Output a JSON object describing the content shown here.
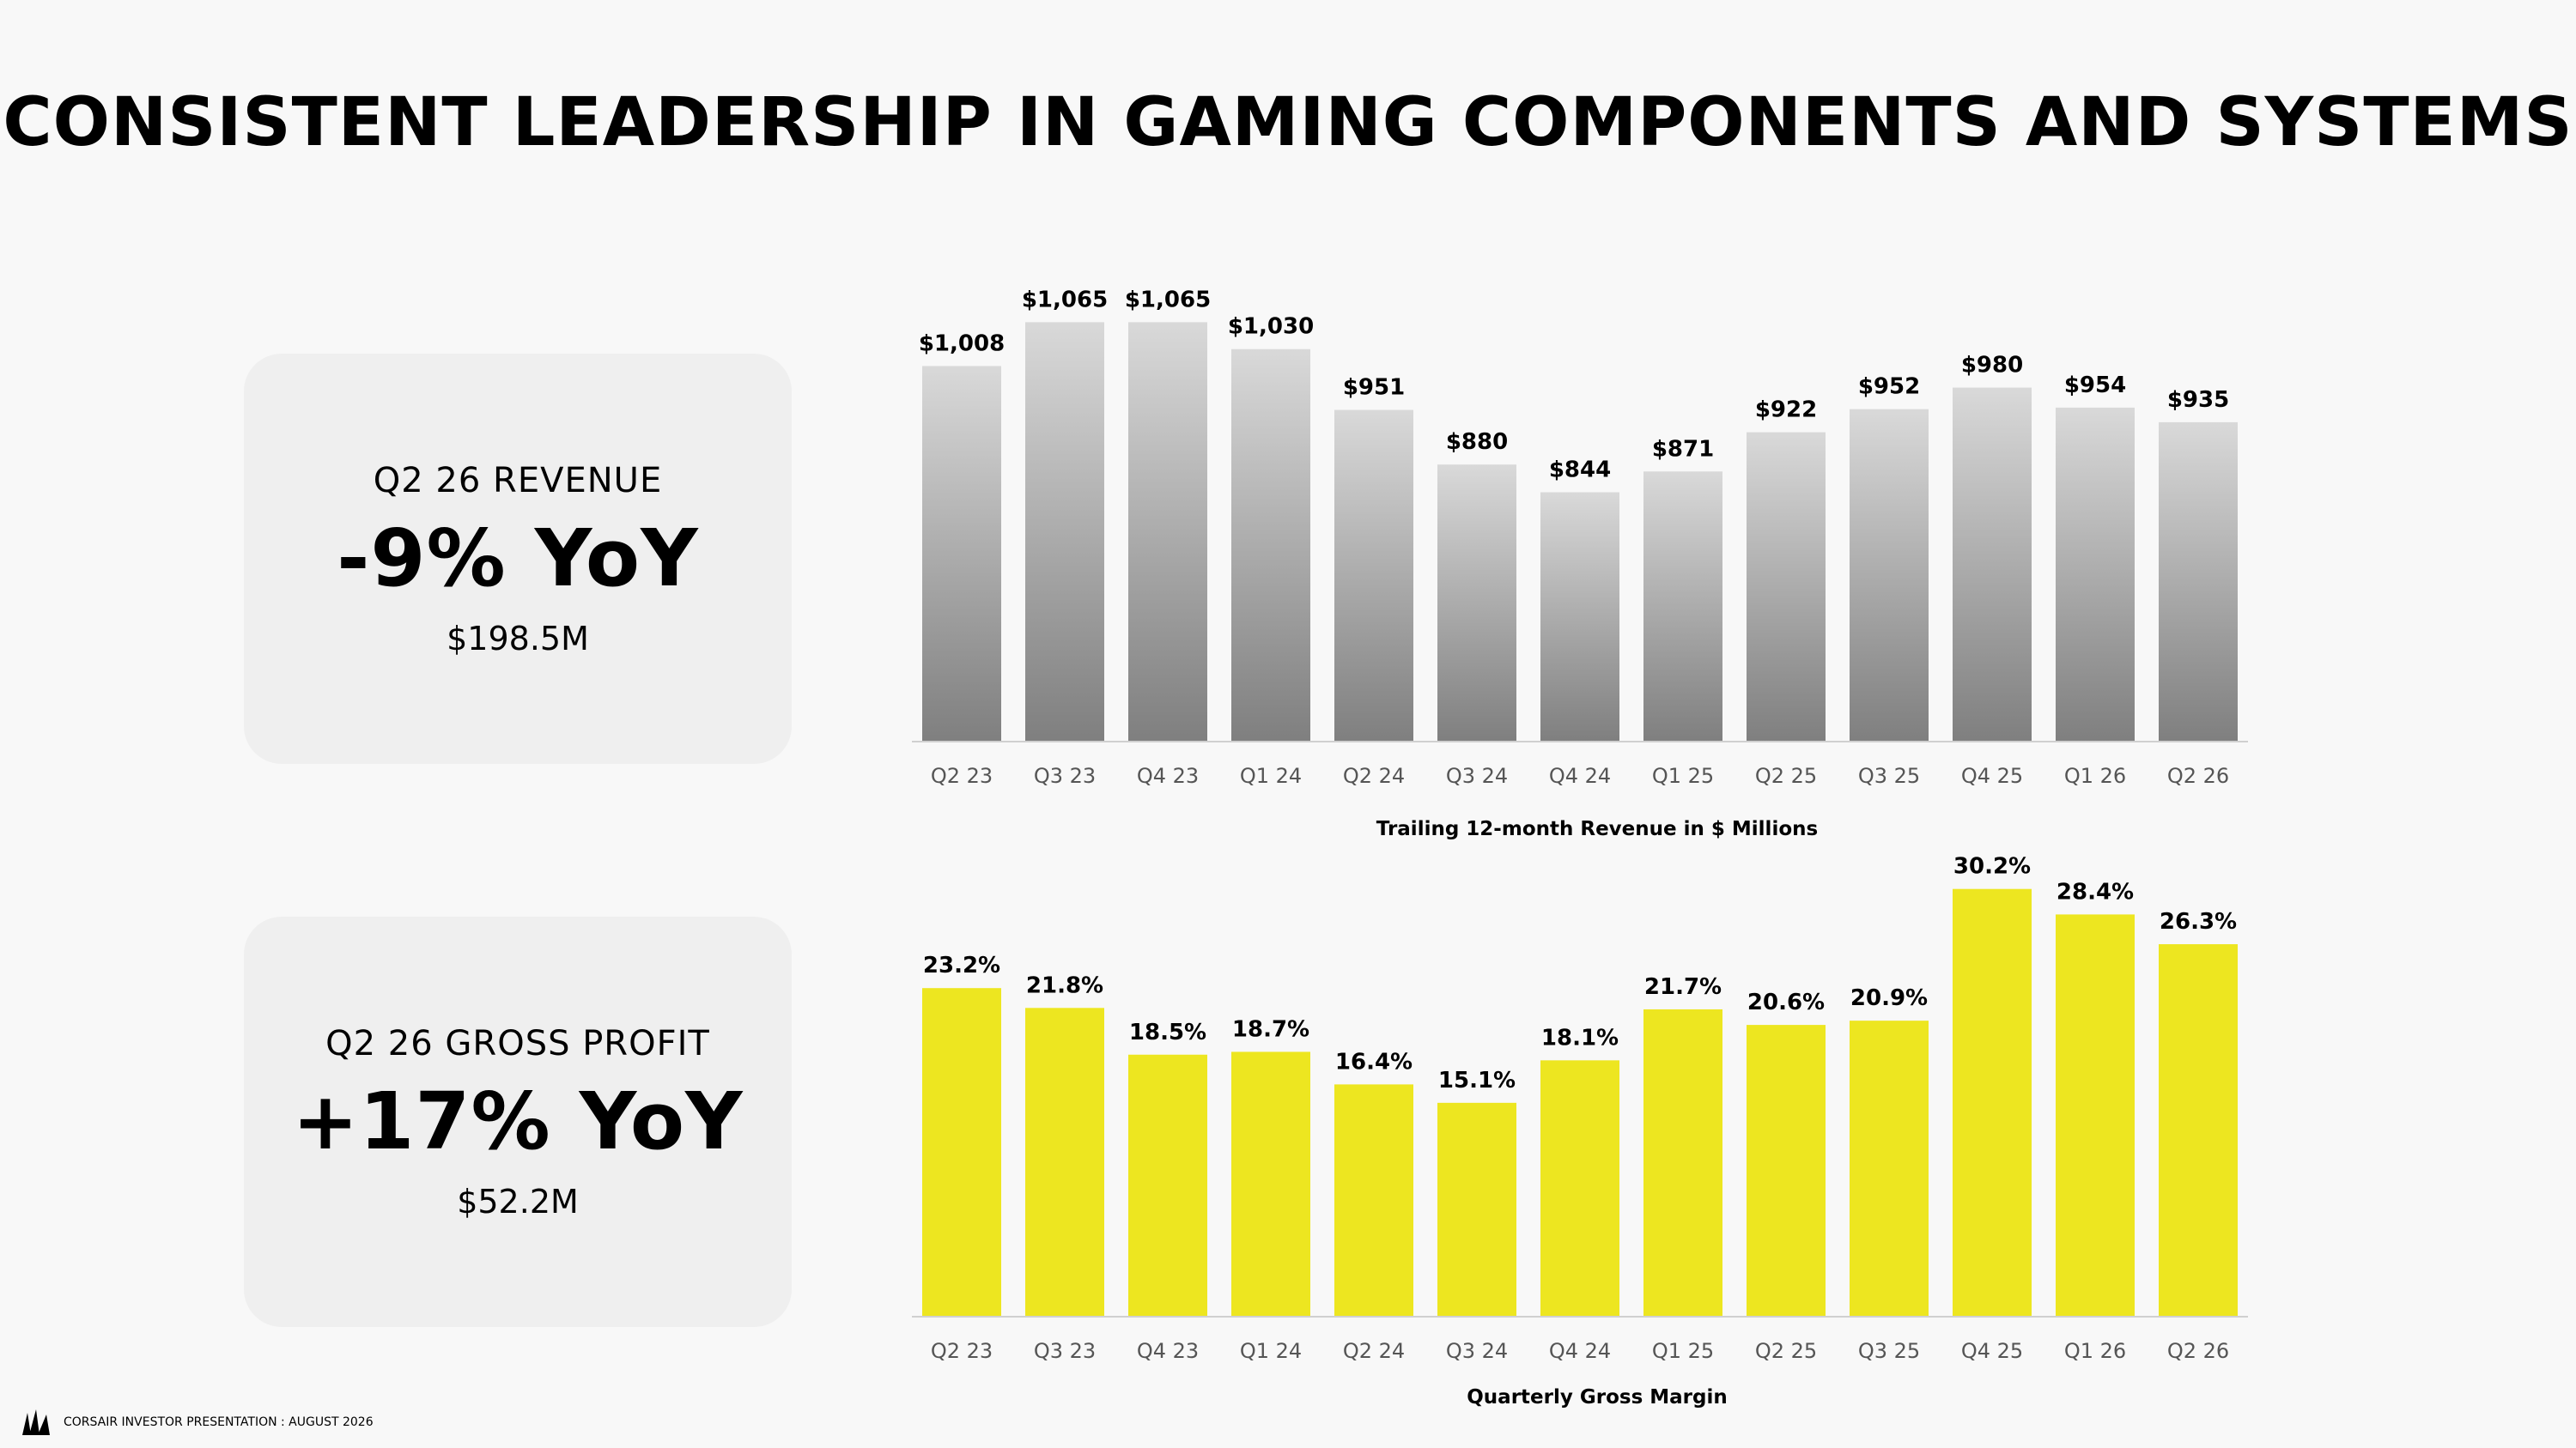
{
  "title": "CONSISTENT LEADERSHIP IN GAMING COMPONENTS AND SYSTEMS",
  "kpis": [
    {
      "label": "Q2 26 REVENUE",
      "value": "-9% YoY",
      "amount": "$198.5M"
    },
    {
      "label": "Q2 26 GROSS PROFIT",
      "value": "+17% YoY",
      "amount": "$52.2M"
    }
  ],
  "chart_data": [
    {
      "type": "bar",
      "caption": "Trailing 12-month Revenue in $ Millions",
      "categories": [
        "Q2 23",
        "Q3 23",
        "Q4 23",
        "Q1 24",
        "Q2 24",
        "Q3 24",
        "Q4 24",
        "Q1 25",
        "Q2 25",
        "Q3 25",
        "Q4 25",
        "Q1 26",
        "Q2 26"
      ],
      "values": [
        1008,
        1065,
        1065,
        1030,
        951,
        880,
        844,
        871,
        922,
        952,
        980,
        954,
        935
      ],
      "data_labels": [
        "$1,008",
        "$1,065",
        "$1,065",
        "$1,030",
        "$951",
        "$880",
        "$844",
        "$871",
        "$922",
        "$952",
        "$980",
        "$954",
        "$935"
      ],
      "color_top": "#d9d9d9",
      "color_bottom": "#7f7f7f"
    },
    {
      "type": "bar",
      "caption": "Quarterly Gross Margin",
      "categories": [
        "Q2 23",
        "Q3 23",
        "Q4 23",
        "Q1 24",
        "Q2 24",
        "Q3 24",
        "Q4 24",
        "Q1 25",
        "Q2 25",
        "Q3 25",
        "Q4 25",
        "Q1 26",
        "Q2 26"
      ],
      "values": [
        23.2,
        21.8,
        18.5,
        18.7,
        16.4,
        15.1,
        18.1,
        21.7,
        20.6,
        20.9,
        30.2,
        28.4,
        26.3
      ],
      "data_labels": [
        "23.2%",
        "21.8%",
        "18.5%",
        "18.7%",
        "16.4%",
        "15.1%",
        "18.1%",
        "21.7%",
        "20.6%",
        "20.9%",
        "30.2%",
        "28.4%",
        "26.3%"
      ],
      "color": "#ede620"
    }
  ],
  "footer": {
    "text": "CORSAIR INVESTOR PRESENTATION : AUGUST 2026",
    "logo_icon": "corsair-sails-icon"
  }
}
